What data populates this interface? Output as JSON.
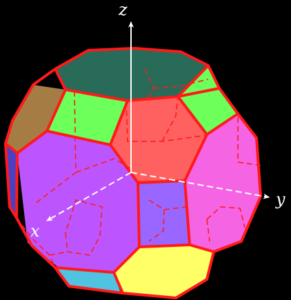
{
  "axes": {
    "x": {
      "label": "x"
    },
    "y": {
      "label": "y"
    },
    "z": {
      "label": "z"
    }
  },
  "colors": {
    "background": "#000000",
    "edge": "#ff1a1a",
    "hidden_edge": "#ff1a1a",
    "axis": "#ffffff",
    "top_hexagon": "#276b58",
    "front_hexagon": "#bd55ff",
    "right_hexagon": "#f564e3",
    "center_hexagon": "#ff6060",
    "bottom_hexagon": "#ffff66",
    "left_hexagon": "#a67c45",
    "square_green": "#6dff5a",
    "square_violet": "#9966ff",
    "square_cyan": "#4fc3e0",
    "square_blue": "#4b3fc4"
  }
}
